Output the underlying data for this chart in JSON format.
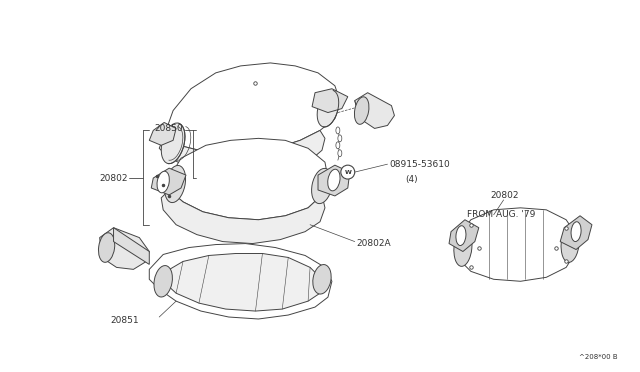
{
  "bg_color": "#ffffff",
  "line_color": "#444444",
  "text_color": "#333333",
  "fig_width": 6.4,
  "fig_height": 3.72,
  "dpi": 100,
  "parts": {
    "top_shield_label": "20850",
    "assembly_label": "20802",
    "bolt_label": "08915-53610",
    "bolt_qty": "(4)",
    "converter_label": "20802A",
    "bottom_shield_label": "20851",
    "from_aug": "FROM AUG. '79",
    "right_label": "20802",
    "note": "^208*00 B"
  }
}
